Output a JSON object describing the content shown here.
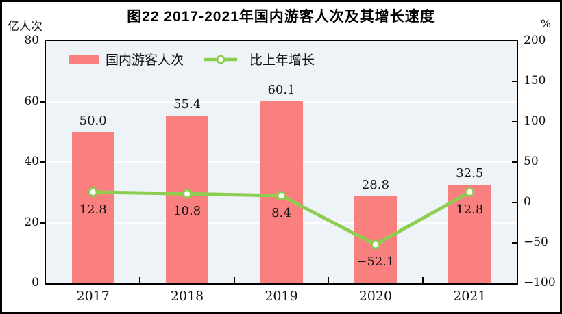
{
  "figure": {
    "title": "图22  2017-2021年国内游客人次及其增长速度",
    "left_axis_unit": "亿人次",
    "right_axis_unit": "%"
  },
  "legend": [
    {
      "label": "国内游客人次",
      "type": "bar",
      "color": "#fa7f7f"
    },
    {
      "label": "比上年增长",
      "type": "line",
      "color": "#8dcd50"
    }
  ],
  "chart_data": {
    "type": "bar+line combo",
    "title": "图22  2017-2021年国内游客人次及其增长速度",
    "categories": [
      "2017",
      "2018",
      "2019",
      "2020",
      "2021"
    ],
    "series": [
      {
        "name": "国内游客人次",
        "type": "bar",
        "axis": "left",
        "unit": "亿人次",
        "values": [
          50.0,
          55.4,
          60.1,
          28.8,
          32.5
        ],
        "labels": [
          "50.0",
          "55.4",
          "60.1",
          "28.8",
          "32.5"
        ],
        "color": "#fa7f7f"
      },
      {
        "name": "比上年增长",
        "type": "line",
        "axis": "right",
        "unit": "%",
        "values": [
          12.8,
          10.8,
          8.4,
          -52.1,
          12.8
        ],
        "labels": [
          "12.8",
          "10.8",
          "8.4",
          "−52.1",
          "12.8"
        ],
        "color": "#8dcd50",
        "marker_fill": "#ffffff"
      }
    ],
    "left_axis": {
      "min": 0,
      "max": 80,
      "tick_values": [
        80,
        60,
        40,
        20,
        0
      ],
      "tick_labels": [
        "80",
        "60",
        "40",
        "20",
        "0"
      ]
    },
    "right_axis": {
      "min": -100,
      "max": 200,
      "tick_values": [
        200,
        150,
        100,
        50,
        0,
        -50,
        -100
      ],
      "tick_labels": [
        "200",
        "150",
        "100",
        "50",
        "0",
        "−50",
        "−100"
      ]
    },
    "gridlines": {
      "axis": "left",
      "at": [
        20,
        40,
        60
      ],
      "color": "#ffffff"
    },
    "plot_background": "#eef3f8",
    "legend_position": "top-left-inside"
  }
}
